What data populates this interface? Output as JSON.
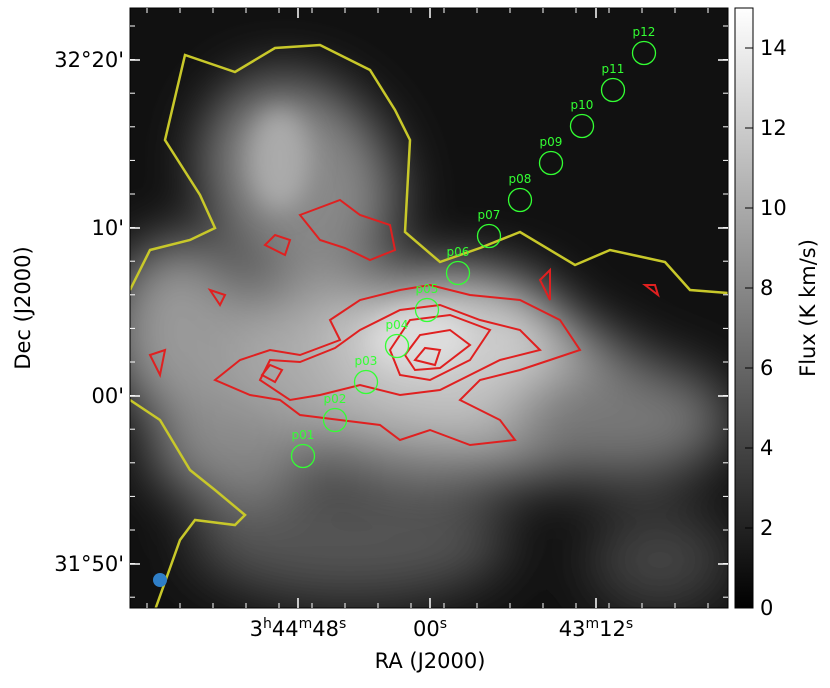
{
  "chart_data": {
    "type": "image",
    "xlabel": "RA (J2000)",
    "ylabel": "Dec (J2000)",
    "x_tick_labels": [
      "3h44m48s",
      "00s",
      "43m12s"
    ],
    "y_tick_labels": [
      "32°20'",
      "10'",
      "00'",
      "31°50'"
    ],
    "colorbar": {
      "label": "Flux (K km/s)",
      "lim": [
        0,
        15
      ],
      "ticks": [
        0,
        2,
        4,
        6,
        8,
        10,
        12,
        14
      ]
    },
    "positions": [
      "p01",
      "p02",
      "p03",
      "p04",
      "p05",
      "p06",
      "p07",
      "p08",
      "p09",
      "p10",
      "p11",
      "p12"
    ]
  }
}
